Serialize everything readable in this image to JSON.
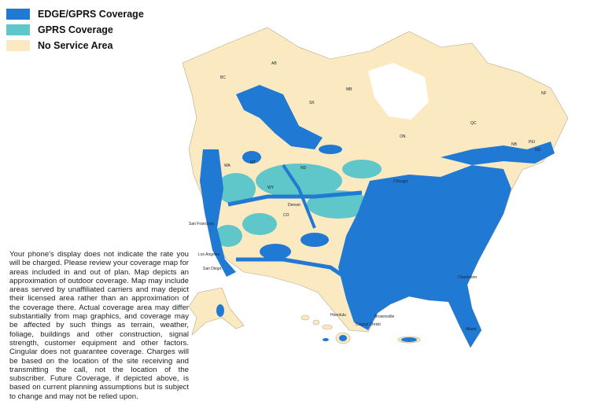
{
  "legend": [
    {
      "label": "EDGE/GPRS Coverage",
      "color": "#2079d2"
    },
    {
      "label": "GPRS Coverage",
      "color": "#5fc6c9"
    },
    {
      "label": "No Service Area",
      "color": "#fbeac1"
    }
  ],
  "disclaimer": "Your phone's display does not indicate the rate you will be charged. Please review your coverage map for areas included in and out of plan. Map depicts an approximation of outdoor coverage. Map may include areas served by unaffiliated carriers and may depict their licensed area rather than an approximation of the coverage there. Actual coverage area may differ substantially from map graphics, and coverage may be affected by such things as terrain, weather, foliage, buildings and other construction, signal strength, customer equipment and other factors. Cingular does not guarantee coverage. Charges will be based on the location of the site receiving and transmitting the call, not the location of the subscriber. Future Coverage, if depicted above, is based on current planning assumptions but is subject to change and may not be relied upon.",
  "map_labels": [
    "BC",
    "AB",
    "SK",
    "MB",
    "ON",
    "QC",
    "NF",
    "NB",
    "NS",
    "PEI",
    "WA",
    "MT",
    "ND",
    "WY",
    "CO",
    "San Francisco",
    "Los Angeles",
    "San Diego",
    "Denver",
    "Chicago",
    "Charleston",
    "Miami",
    "Corpus Christi",
    "Brownsville",
    "Honolulu"
  ]
}
